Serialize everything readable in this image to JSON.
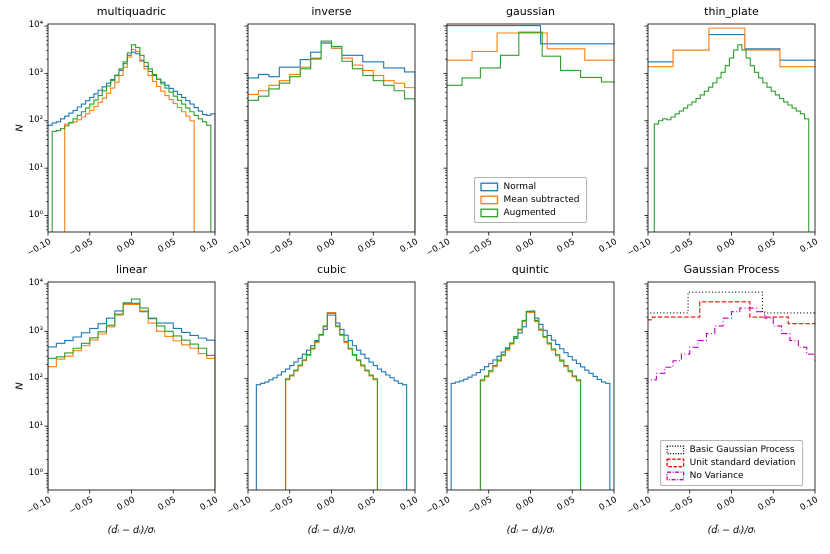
{
  "figure": {
    "background": "#ffffff",
    "axes": {
      "xlim": [
        -0.1,
        0.1
      ],
      "ylim": [
        0.45,
        11000
      ],
      "yscale": "log",
      "x_tick_values": [
        -0.1,
        -0.05,
        0.0,
        0.05,
        0.1
      ],
      "x_tick_labels": [
        "−0.10",
        "−0.05",
        "0.00",
        "0.05",
        "0.10"
      ],
      "y_tick_values": [
        1,
        10,
        100,
        1000,
        10000
      ],
      "y_tick_labels": [
        "10⁰",
        "10¹",
        "10²",
        "10³",
        "10⁴"
      ],
      "frame_color": "#1a1a1a"
    },
    "colors": {
      "normal": "#1f77b4",
      "mean_subtracted": "#ff7f0e",
      "augmented": "#2ca02c",
      "basic_gp": "#000000",
      "unit_std": "#ff0000",
      "no_variance": "#bf00bf"
    }
  },
  "chart_data": [
    {
      "type": "histogram-step",
      "title": "multiquadric",
      "ylabel": "N",
      "yscale": "log",
      "series": [
        {
          "name": "Normal",
          "color": "#1f77b4",
          "linestyle": "solid",
          "x0": -0.1,
          "dx": 0.005,
          "counts": [
            80,
            90,
            95,
            110,
            125,
            145,
            165,
            195,
            225,
            265,
            310,
            370,
            440,
            520,
            620,
            740,
            900,
            1150,
            1600,
            2400,
            2800,
            2600,
            1900,
            1400,
            1100,
            900,
            760,
            650,
            560,
            480,
            420,
            360,
            310,
            265,
            225,
            190,
            160,
            135,
            130,
            140
          ]
        },
        {
          "name": "Mean subtracted",
          "color": "#ff7f0e",
          "linestyle": "solid",
          "x0": -0.1,
          "dx": 0.005,
          "counts": [
            0,
            0,
            0,
            0,
            85,
            90,
            95,
            105,
            120,
            140,
            165,
            200,
            245,
            300,
            380,
            490,
            650,
            900,
            1350,
            2200,
            3200,
            2900,
            1800,
            1250,
            900,
            680,
            530,
            420,
            340,
            280,
            230,
            190,
            155,
            125,
            100,
            0,
            0,
            0,
            0,
            0
          ]
        },
        {
          "name": "Augmented",
          "color": "#2ca02c",
          "linestyle": "solid",
          "x0": -0.1,
          "dx": 0.005,
          "counts": [
            0,
            60,
            62,
            68,
            78,
            92,
            110,
            130,
            155,
            185,
            225,
            275,
            340,
            425,
            540,
            700,
            920,
            1250,
            1750,
            2700,
            4000,
            3500,
            2400,
            1700,
            1250,
            950,
            750,
            600,
            490,
            400,
            330,
            270,
            225,
            185,
            155,
            130,
            110,
            95,
            80,
            0
          ]
        }
      ]
    },
    {
      "type": "histogram-step",
      "title": "inverse",
      "yscale": "log",
      "series": [
        {
          "name": "Normal",
          "color": "#1f77b4",
          "linestyle": "solid",
          "x0": -0.1,
          "dx": 0.0125,
          "counts": [
            800,
            950,
            850,
            1350,
            1350,
            1950,
            2800,
            4400,
            3400,
            2400,
            2400,
            1750,
            1750,
            1300,
            1300,
            1070
          ]
        },
        {
          "name": "Mean subtracted",
          "color": "#ff7f0e",
          "linestyle": "solid",
          "x0": -0.1,
          "dx": 0.0125,
          "counts": [
            360,
            430,
            560,
            700,
            950,
            1350,
            2100,
            4300,
            3400,
            2100,
            1500,
            1150,
            900,
            700,
            620,
            500
          ]
        },
        {
          "name": "Augmented",
          "color": "#2ca02c",
          "linestyle": "solid",
          "x0": -0.1,
          "dx": 0.0125,
          "counts": [
            270,
            330,
            470,
            620,
            850,
            1250,
            2000,
            4800,
            3700,
            1800,
            1250,
            900,
            700,
            560,
            430,
            290
          ]
        }
      ]
    },
    {
      "type": "histogram-step",
      "title": "gaussian",
      "yscale": "log",
      "series": [
        {
          "name": "Normal",
          "color": "#1f77b4",
          "linestyle": "solid",
          "edges": [
            -0.15,
            0.012,
            0.15
          ],
          "counts": [
            10200,
            4200
          ]
        },
        {
          "name": "Mean subtracted",
          "color": "#ff7f0e",
          "linestyle": "solid",
          "edges": [
            -0.15,
            -0.07,
            -0.04,
            0.02,
            0.065,
            0.15
          ],
          "counts": [
            1900,
            2900,
            7100,
            3300,
            1900
          ]
        },
        {
          "name": "Augmented",
          "color": "#2ca02c",
          "linestyle": "solid",
          "edges": [
            -0.15,
            -0.082,
            -0.06,
            -0.036,
            -0.014,
            0.014,
            0.036,
            0.06,
            0.085,
            0.15
          ],
          "counts": [
            560,
            800,
            1300,
            2400,
            7400,
            2300,
            1150,
            820,
            660
          ]
        }
      ],
      "legend": {
        "position": "lower-center",
        "entries": [
          {
            "label": "Normal",
            "color": "#1f77b4",
            "linestyle": "solid"
          },
          {
            "label": "Mean subtracted",
            "color": "#ff7f0e",
            "linestyle": "solid"
          },
          {
            "label": "Augmented",
            "color": "#2ca02c",
            "linestyle": "solid"
          }
        ]
      }
    },
    {
      "type": "histogram-step",
      "title": "thin_plate",
      "yscale": "log",
      "series": [
        {
          "name": "Normal",
          "color": "#1f77b4",
          "linestyle": "solid",
          "edges": [
            -0.15,
            -0.07,
            -0.027,
            0.016,
            0.058,
            0.15
          ],
          "counts": [
            1750,
            3100,
            6600,
            3300,
            1900
          ]
        },
        {
          "name": "Mean subtracted",
          "color": "#ff7f0e",
          "linestyle": "solid",
          "edges": [
            -0.15,
            -0.07,
            -0.027,
            0.016,
            0.058,
            0.15
          ],
          "counts": [
            1380,
            3100,
            9000,
            3100,
            1380
          ]
        },
        {
          "name": "Augmented",
          "color": "#2ca02c",
          "linestyle": "solid",
          "x0": -0.0925,
          "dx": 0.005,
          "counts": [
            85,
            100,
            110,
            105,
            120,
            140,
            160,
            185,
            215,
            250,
            295,
            350,
            420,
            510,
            630,
            800,
            1050,
            1450,
            2100,
            3100,
            4000,
            3100,
            2100,
            1450,
            1050,
            800,
            630,
            510,
            420,
            350,
            295,
            250,
            215,
            185,
            160,
            140,
            110
          ]
        }
      ]
    },
    {
      "type": "histogram-step",
      "title": "linear",
      "ylabel": "N",
      "xlabel": "(d̂ᵢ − dᵢ)/σᵢ",
      "yscale": "log",
      "series": [
        {
          "name": "Normal",
          "color": "#1f77b4",
          "linestyle": "solid",
          "x0": -0.1,
          "dx": 0.01,
          "counts": [
            470,
            560,
            640,
            760,
            930,
            1150,
            1450,
            1900,
            2700,
            3900,
            3900,
            2600,
            1850,
            1500,
            1500,
            1150,
            950,
            820,
            720,
            650
          ]
        },
        {
          "name": "Mean subtracted",
          "color": "#ff7f0e",
          "linestyle": "solid",
          "x0": -0.1,
          "dx": 0.01,
          "counts": [
            180,
            260,
            300,
            390,
            500,
            660,
            880,
            1250,
            2200,
            3700,
            3700,
            2700,
            1500,
            1000,
            780,
            630,
            520,
            440,
            340,
            270
          ]
        },
        {
          "name": "Augmented",
          "color": "#2ca02c",
          "linestyle": "solid",
          "x0": -0.1,
          "dx": 0.01,
          "counts": [
            270,
            290,
            350,
            440,
            560,
            730,
            980,
            1350,
            2300,
            4000,
            4800,
            3100,
            1900,
            1300,
            1000,
            800,
            650,
            540,
            440,
            310
          ]
        }
      ]
    },
    {
      "type": "histogram-step",
      "title": "cubic",
      "xlabel": "(d̂ᵢ − dᵢ)/σᵢ",
      "yscale": "log",
      "series": [
        {
          "name": "Normal",
          "color": "#1f77b4",
          "linestyle": "solid",
          "x0": -0.1,
          "dx": 0.005,
          "counts": [
            0,
            0,
            75,
            80,
            85,
            95,
            105,
            120,
            140,
            160,
            190,
            225,
            270,
            330,
            400,
            500,
            640,
            830,
            1100,
            2200,
            2200,
            1500,
            1100,
            830,
            640,
            500,
            400,
            330,
            270,
            225,
            190,
            160,
            140,
            120,
            105,
            90,
            80,
            75,
            0,
            0
          ]
        },
        {
          "name": "Mean subtracted",
          "color": "#ff7f0e",
          "linestyle": "solid",
          "x0": -0.1,
          "dx": 0.005,
          "counts": [
            0,
            0,
            0,
            0,
            0,
            0,
            0,
            0,
            0,
            95,
            115,
            145,
            185,
            240,
            310,
            420,
            580,
            820,
            1250,
            2500,
            2500,
            1250,
            820,
            580,
            420,
            310,
            240,
            185,
            145,
            115,
            95,
            0,
            0,
            0,
            0,
            0,
            0,
            0,
            0,
            0
          ]
        },
        {
          "name": "Augmented",
          "color": "#2ca02c",
          "linestyle": "solid",
          "x0": -0.1,
          "dx": 0.005,
          "counts": [
            0,
            0,
            0,
            0,
            0,
            0,
            0,
            0,
            0,
            100,
            120,
            152,
            195,
            250,
            325,
            440,
            610,
            860,
            1300,
            2400,
            2400,
            1300,
            860,
            610,
            440,
            325,
            250,
            195,
            152,
            120,
            100,
            0,
            0,
            0,
            0,
            0,
            0,
            0,
            0,
            0
          ]
        }
      ]
    },
    {
      "type": "histogram-step",
      "title": "quintic",
      "xlabel": "(d̂ᵢ − dᵢ)/σᵢ",
      "yscale": "log",
      "series": [
        {
          "name": "Normal",
          "color": "#1f77b4",
          "linestyle": "solid",
          "x0": -0.1,
          "dx": 0.005,
          "counts": [
            0,
            80,
            85,
            90,
            98,
            108,
            120,
            135,
            155,
            180,
            210,
            250,
            300,
            365,
            450,
            560,
            710,
            920,
            1250,
            2600,
            2700,
            1900,
            1400,
            1050,
            820,
            650,
            530,
            430,
            355,
            295,
            248,
            210,
            178,
            152,
            130,
            112,
            97,
            85,
            80,
            0
          ]
        },
        {
          "name": "Mean subtracted",
          "color": "#ff7f0e",
          "linestyle": "solid",
          "x0": -0.1,
          "dx": 0.005,
          "counts": [
            0,
            0,
            0,
            0,
            0,
            0,
            0,
            0,
            90,
            110,
            140,
            180,
            235,
            305,
            400,
            540,
            740,
            1050,
            1600,
            2500,
            2500,
            1600,
            1050,
            740,
            540,
            400,
            305,
            235,
            180,
            140,
            110,
            90,
            0,
            0,
            0,
            0,
            0,
            0,
            0,
            0
          ]
        },
        {
          "name": "Augmented",
          "color": "#2ca02c",
          "linestyle": "solid",
          "x0": -0.1,
          "dx": 0.005,
          "counts": [
            0,
            0,
            0,
            0,
            0,
            0,
            0,
            0,
            95,
            115,
            148,
            190,
            248,
            322,
            425,
            570,
            780,
            1110,
            1700,
            2650,
            2650,
            1700,
            1110,
            780,
            570,
            425,
            322,
            248,
            190,
            148,
            115,
            95,
            0,
            0,
            0,
            0,
            0,
            0,
            0,
            0
          ]
        }
      ]
    },
    {
      "type": "histogram-step",
      "title": "Gaussian Process",
      "xlabel": "(d̂ᵢ − dᵢ)/σᵢ",
      "yscale": "log",
      "series": [
        {
          "name": "Basic Gaussian Process",
          "color": "#000000",
          "linestyle": "dotted",
          "edges": [
            -0.15,
            -0.052,
            0.037,
            0.15
          ],
          "counts": [
            2450,
            6700,
            2450
          ]
        },
        {
          "name": "Unit standard deviation",
          "color": "#ff0000",
          "linestyle": "dashed",
          "edges": [
            -0.15,
            -0.095,
            -0.038,
            0.022,
            0.068,
            0.15
          ],
          "counts": [
            1750,
            2000,
            4200,
            2000,
            1450
          ]
        },
        {
          "name": "No Variance",
          "color": "#bf00bf",
          "linestyle": "dashdot",
          "x0": -0.13,
          "dx": 0.01,
          "counts": [
            55,
            65,
            80,
            95,
            130,
            175,
            240,
            330,
            460,
            640,
            900,
            1300,
            1900,
            2600,
            3100,
            3100,
            2600,
            1900,
            1300,
            900,
            640,
            460,
            330,
            240,
            175,
            130
          ]
        }
      ],
      "legend": {
        "position": "lower-center",
        "entries": [
          {
            "label": "Basic Gaussian Process",
            "color": "#000000",
            "linestyle": "dotted"
          },
          {
            "label": "Unit standard deviation",
            "color": "#ff0000",
            "linestyle": "dashed"
          },
          {
            "label": "No Variance",
            "color": "#bf00bf",
            "linestyle": "dashdot"
          }
        ]
      }
    }
  ]
}
